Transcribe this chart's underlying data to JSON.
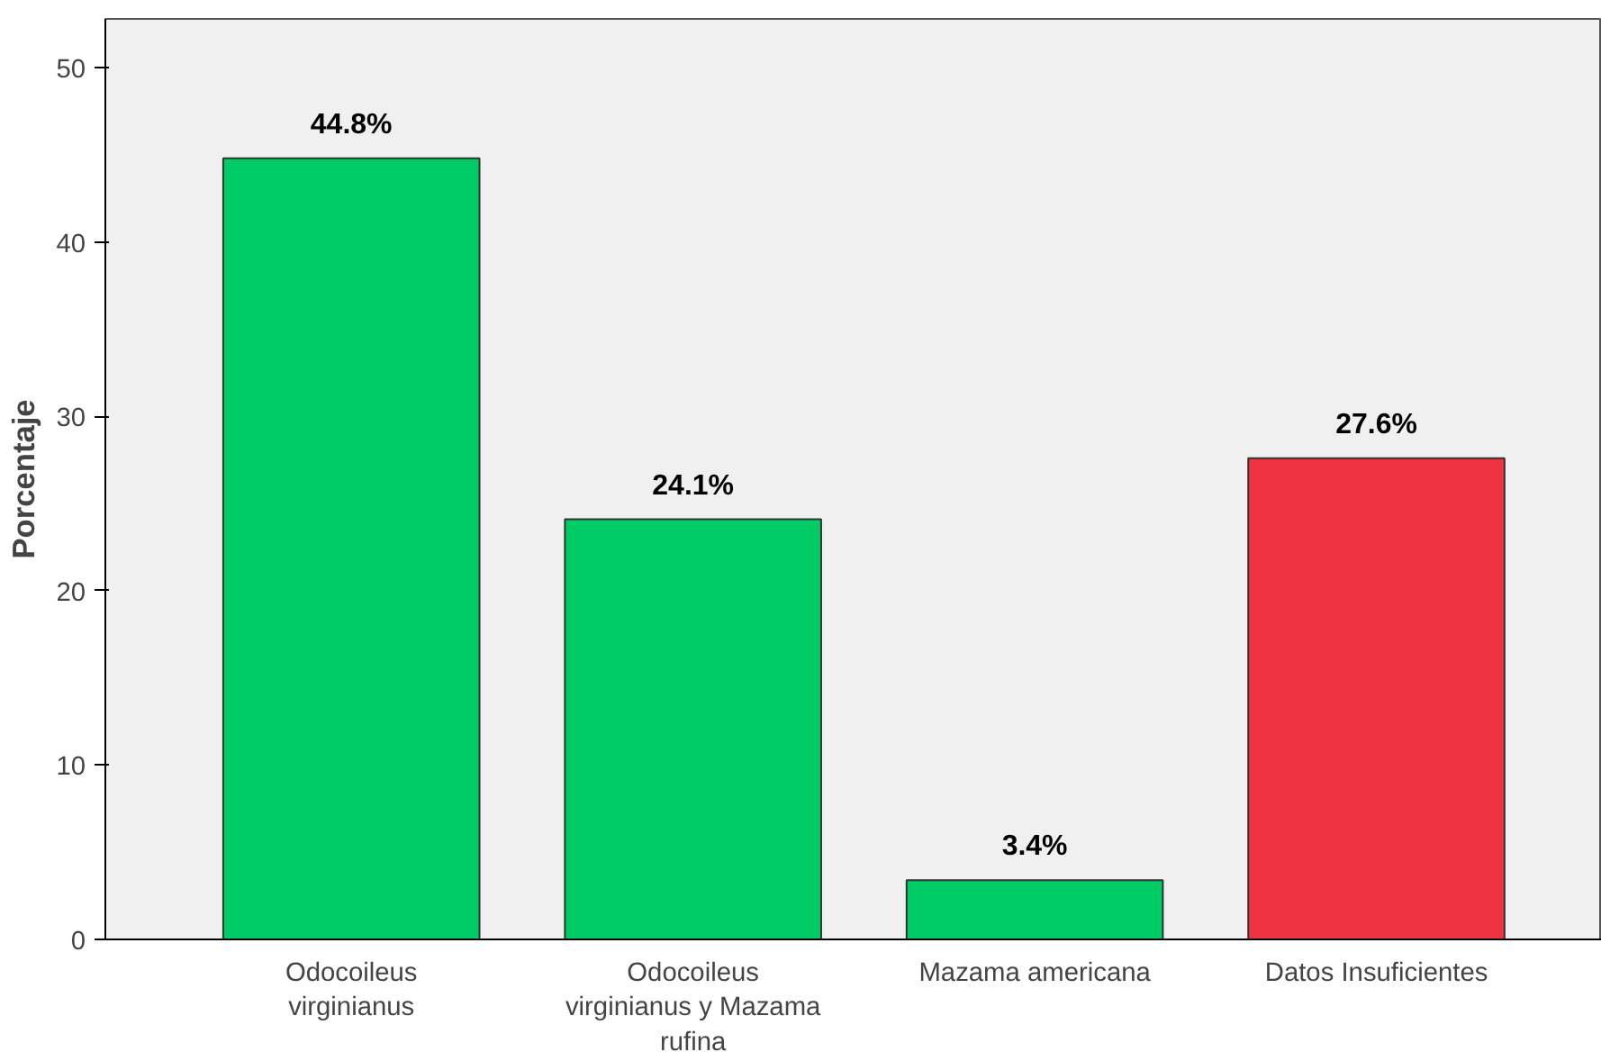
{
  "chart_data": {
    "type": "bar",
    "ylabel": "Porcentaje",
    "categories": [
      "Odocoileus virginianus",
      "Odocoileus virginianus y Mazama rufina",
      "Mazama americana",
      "Datos Insuficientes"
    ],
    "values": [
      44.8,
      24.1,
      3.4,
      27.6
    ],
    "colors": [
      "#00cc66",
      "#00cc66",
      "#00cc66",
      "#ef3340"
    ],
    "value_labels": [
      "44.8%",
      "24.1%",
      "3.4%",
      "27.6%"
    ],
    "ylim": [
      0,
      52.8
    ],
    "yticks": [
      0,
      10,
      20,
      30,
      40,
      50
    ],
    "grid": false
  }
}
